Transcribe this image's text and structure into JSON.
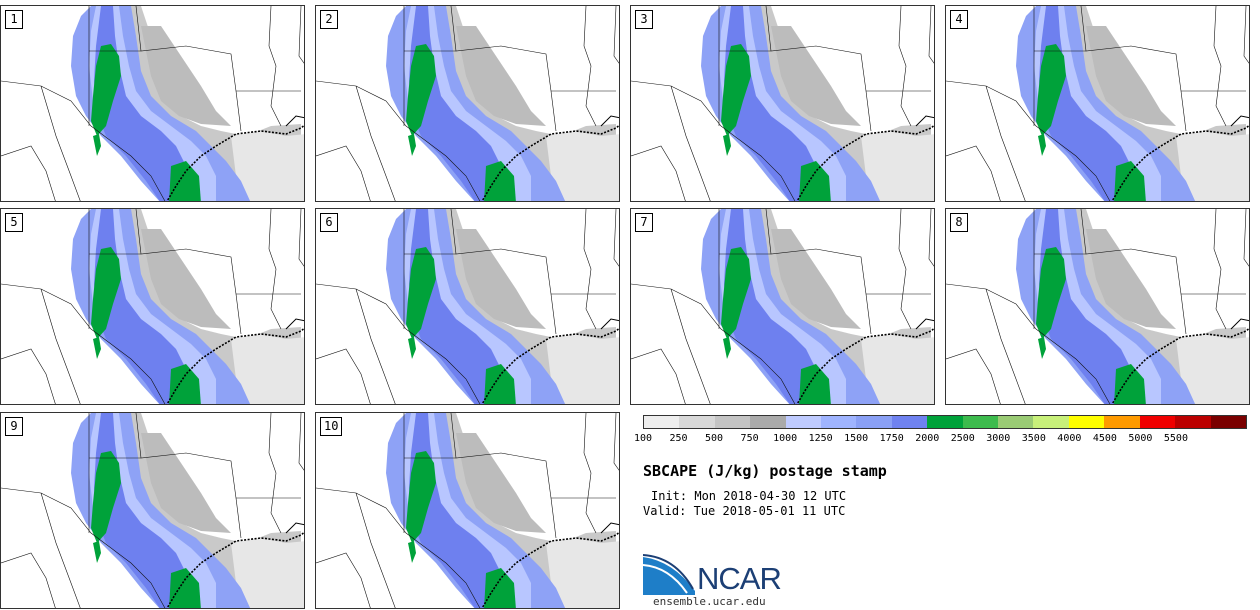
{
  "panels": [
    {
      "label": "1"
    },
    {
      "label": "2"
    },
    {
      "label": "3"
    },
    {
      "label": "4"
    },
    {
      "label": "5"
    },
    {
      "label": "6"
    },
    {
      "label": "7"
    },
    {
      "label": "8"
    },
    {
      "label": "9"
    },
    {
      "label": "10"
    }
  ],
  "colorbar": {
    "colors": [
      "#eeeeee",
      "#d8d8d8",
      "#c4c4c4",
      "#aaaaaa",
      "#bfcbff",
      "#9fb4ff",
      "#8aa0f5",
      "#6f82f0",
      "#00a23a",
      "#3dbb4d",
      "#9acb74",
      "#c8f07a",
      "#ffff00",
      "#ff9a00",
      "#f00000",
      "#bb0000",
      "#7a0000"
    ],
    "ticks": [
      "100",
      "250",
      "500",
      "750",
      "1000",
      "1250",
      "1500",
      "1750",
      "2000",
      "2500",
      "3000",
      "3500",
      "4000",
      "4500",
      "5000",
      "5500"
    ]
  },
  "title": "SBCAPE (J/kg) postage stamp",
  "init": "Init: Mon 2018-04-30 12 UTC",
  "valid": "Valid: Tue 2018-05-01 11 UTC",
  "logo_text": "NCAR",
  "url": "ensemble.ucar.edu"
}
